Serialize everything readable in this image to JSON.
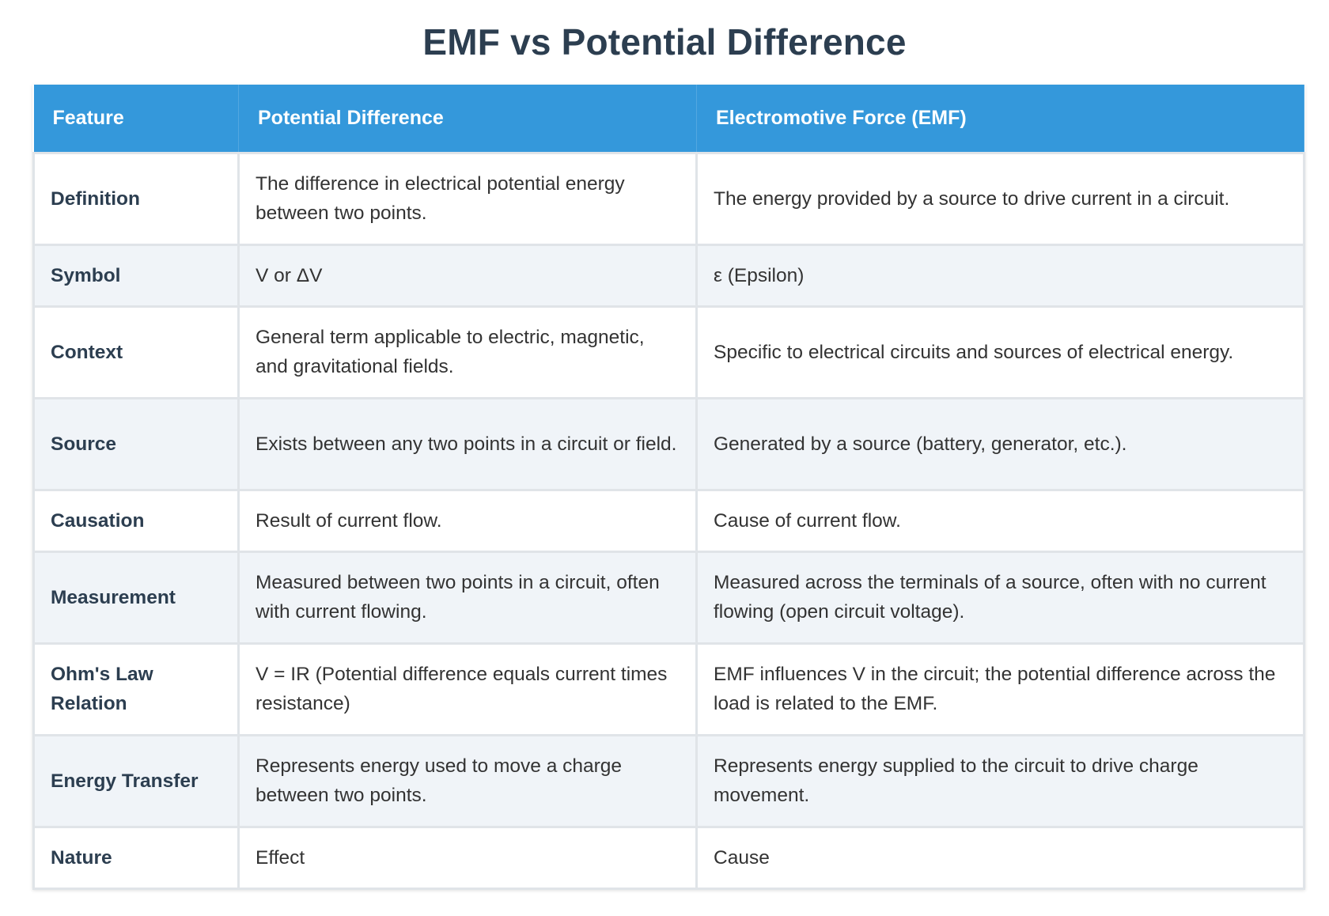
{
  "title": "EMF vs Potential Difference",
  "headers": [
    "Feature",
    "Potential Difference",
    "Electromotive Force (EMF)"
  ],
  "rows": [
    {
      "feature": "Definition",
      "pd": "The difference in electrical potential energy between two points.",
      "emf": "The energy provided by a source to drive current in a circuit."
    },
    {
      "feature": "Symbol",
      "pd": "V or ΔV",
      "emf": "ε (Epsilon)"
    },
    {
      "feature": "Context",
      "pd": "General term applicable to electric, magnetic, and gravitational fields.",
      "emf": "Specific to electrical circuits and sources of electrical energy."
    },
    {
      "feature": "Source",
      "pd": "Exists between any two points in a circuit or field.",
      "emf": "Generated by a source (battery, generator, etc.)."
    },
    {
      "feature": "Causation",
      "pd": "Result of current flow.",
      "emf": "Cause of current flow."
    },
    {
      "feature": "Measurement",
      "pd": "Measured between two points in a circuit, often with current flowing.",
      "emf": "Measured across the terminals of a source, often with no current flowing (open circuit voltage)."
    },
    {
      "feature": "Ohm's Law Relation",
      "pd": "V = IR (Potential difference equals current times resistance)",
      "emf": "EMF influences V in the circuit; the potential difference across the load is related to the EMF."
    },
    {
      "feature": "Energy Transfer",
      "pd": "Represents energy used to move a charge between two points.",
      "emf": "Represents energy supplied to the circuit to drive charge movement."
    },
    {
      "feature": "Nature",
      "pd": "Effect",
      "emf": "Cause"
    }
  ],
  "colors": {
    "header_bg": "#3498db",
    "title": "#2c3e50",
    "row_alt": "#f0f4f8",
    "border": "#e0e4e8"
  }
}
